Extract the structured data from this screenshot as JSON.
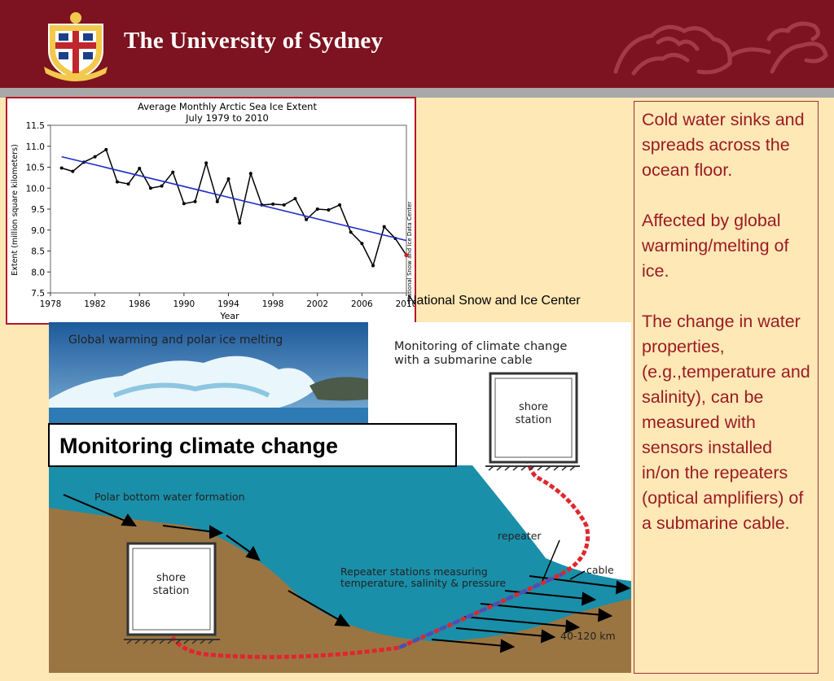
{
  "header": {
    "title": "The University of Sydney"
  },
  "chart_data": {
    "type": "line",
    "title": "Average Monthly Arctic Sea Ice Extent",
    "subtitle": "July 1979 to 2010",
    "xlabel": "Year",
    "ylabel": "Extent (million square kilometers)",
    "side_label": "National Snow and Ice Data Center",
    "xlim": [
      1978,
      2010
    ],
    "ylim": [
      7.5,
      11.5
    ],
    "x_ticks": [
      1978,
      1982,
      1986,
      1990,
      1994,
      1998,
      2002,
      2006,
      2010
    ],
    "y_ticks": [
      "11.5",
      "11.0",
      "10.5",
      "10.0",
      "9.5",
      "9.0",
      "8.5",
      "8.0",
      "7.5"
    ],
    "series": [
      {
        "x": [
          1979,
          1980,
          1981,
          1982,
          1983,
          1984,
          1985,
          1986,
          1987,
          1988,
          1989,
          1990,
          1991,
          1992,
          1993,
          1994,
          1995,
          1996,
          1997,
          1998,
          1999,
          2000,
          2001,
          2002,
          2003,
          2004,
          2005,
          2006,
          2007,
          2008,
          2009,
          2010
        ],
        "y": [
          10.48,
          10.4,
          10.62,
          10.75,
          10.92,
          10.15,
          10.1,
          10.47,
          10.0,
          10.05,
          10.38,
          9.63,
          9.68,
          10.6,
          9.68,
          10.22,
          9.17,
          10.35,
          9.6,
          9.62,
          9.6,
          9.75,
          9.25,
          9.5,
          9.48,
          9.6,
          8.95,
          8.68,
          8.15,
          9.08,
          8.8,
          8.4
        ],
        "color": "#000000"
      },
      {
        "name": "trend",
        "x": [
          1979,
          2010
        ],
        "y": [
          10.75,
          8.75
        ],
        "color": "#1f2fc4"
      }
    ],
    "last_point_color": "#d42020"
  },
  "credit": "National Snow and Ice Center",
  "overlay_title": "Monitoring climate change",
  "diagram": {
    "photo_caption": "Global warming and polar ice melting",
    "heading_line1": "Monitoring of climate change",
    "heading_line2": "with a submarine cable",
    "shore_station_top_1": "shore",
    "shore_station_top_2": "station",
    "shore_station_left_1": "shore",
    "shore_station_left_2": "station",
    "polar_label": "Polar bottom water formation",
    "repeater_label": "repeater",
    "cable_label": "cable",
    "repeater_stations_line1": "Repeater stations measuring",
    "repeater_stations_line2": "temperature, salinity & pressure",
    "distance_label": "40-120 km"
  },
  "sidebar": {
    "p1": "Cold water sinks and spreads across the ocean floor.",
    "p2": "Affected by global warming/melting of ice.",
    "p3": "The change in water properties, (e.g.,temperature and salinity), can be measured with sensors installed in/on the repeaters (optical amplifiers) of a submarine cable."
  },
  "colors": {
    "header_bg": "#7d1320",
    "slide_bg": "#fde8b6",
    "sidebar_text": "#9c1b24",
    "ocean": "#1a8fa9",
    "seabed": "#9a7542",
    "cable": "#e0262c"
  }
}
